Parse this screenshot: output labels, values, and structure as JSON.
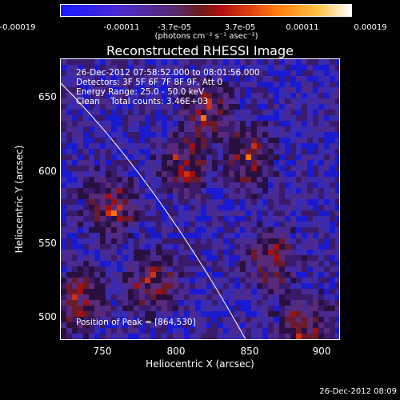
{
  "colorbar": {
    "ticks": [
      "-0.00019",
      "-0.00011",
      "-3.7e-05",
      "3.7e-05",
      "0.00011",
      "0.00019"
    ],
    "unit": "(photons cm⁻² s⁻¹ asec⁻²)"
  },
  "title": "Reconstructed RHESSI Image",
  "info_lines": {
    "time": "26-Dec-2012 07:58:52.000 to 08:01:56.000",
    "detectors": "Detectors: 3F 5F 6F 7F 8F 9F, Att 0",
    "energy": "Energy Range: 25.0 - 50.0 keV",
    "clean": "Clean    Total counts: 3.46E+03"
  },
  "peak": "Position of Peak = [864,530]",
  "axes": {
    "xlabel": "Heliocentric X (arcsec)",
    "ylabel": "Heliocentric Y (arcsec)",
    "xticks": [
      "750",
      "800",
      "850",
      "900"
    ],
    "yticks": [
      "650",
      "600",
      "550",
      "500"
    ]
  },
  "footer": "26-Dec-2012 08:09"
}
